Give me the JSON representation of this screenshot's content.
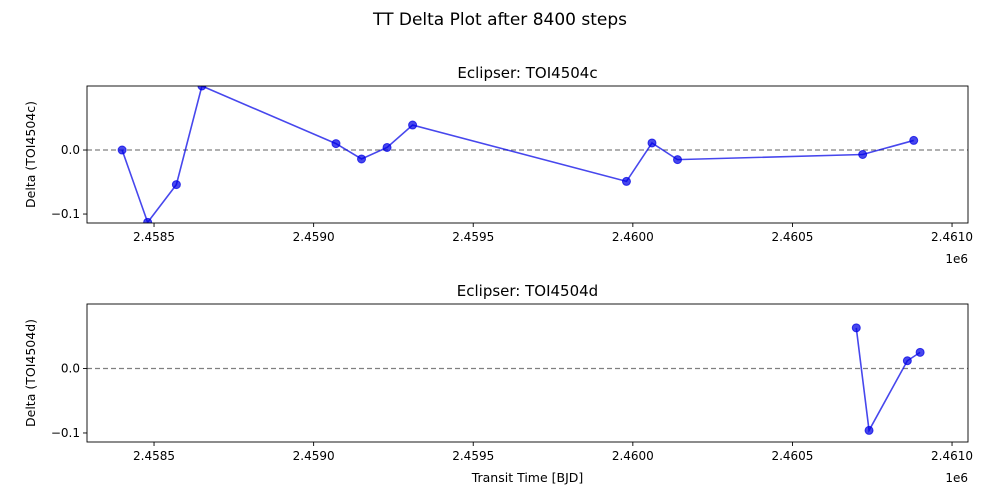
{
  "figure": {
    "suptitle": "TT Delta Plot after 8400 steps"
  },
  "chart_data": [
    {
      "type": "line",
      "title": "Eclipser: TOI4504c",
      "xlabel": "",
      "ylabel": "Delta (TOI4504c)",
      "xlim": [
        2.45829,
        2.46105
      ],
      "ylim": [
        -0.114,
        0.1
      ],
      "x_offset_label": "1e6",
      "x_ticks": [
        2.4585,
        2.459,
        2.4595,
        2.46,
        2.4605,
        2.461
      ],
      "x_tick_labels": [
        "2.4585",
        "2.4590",
        "2.4595",
        "2.4600",
        "2.4605",
        "2.4610"
      ],
      "y_ticks": [
        -0.1,
        0.0
      ],
      "y_tick_labels": [
        "−0.1",
        "0.0"
      ],
      "reference_line": {
        "y": 0.0,
        "style": "dashed",
        "color": "#808080"
      },
      "color": "#0000e6",
      "series": [
        {
          "x": [
            2.4584,
            2.45848,
            2.45857,
            2.45865,
            2.45907,
            2.45915,
            2.45923,
            2.45931,
            2.45998,
            2.46006,
            2.46014,
            2.46072,
            2.46088
          ],
          "y": [
            0.0,
            -0.113,
            -0.054,
            0.1,
            0.01,
            -0.014,
            0.004,
            0.039,
            -0.049,
            0.011,
            -0.015,
            -0.007,
            0.015
          ]
        }
      ]
    },
    {
      "type": "line",
      "title": "Eclipser: TOI4504d",
      "xlabel": "Transit Time [BJD]",
      "ylabel": "Delta (TOI4504d)",
      "xlim": [
        2.45829,
        2.46105
      ],
      "ylim": [
        -0.114,
        0.1
      ],
      "x_offset_label": "1e6",
      "x_ticks": [
        2.4585,
        2.459,
        2.4595,
        2.46,
        2.4605,
        2.461
      ],
      "x_tick_labels": [
        "2.4585",
        "2.4590",
        "2.4595",
        "2.4600",
        "2.4605",
        "2.4610"
      ],
      "y_ticks": [
        -0.1,
        0.0
      ],
      "y_tick_labels": [
        "−0.1",
        "0.0"
      ],
      "reference_line": {
        "y": 0.0,
        "style": "dashed",
        "color": "#808080"
      },
      "color": "#0000e6",
      "series": [
        {
          "x": [
            2.4607,
            2.46074,
            2.46086,
            2.4609
          ],
          "y": [
            0.063,
            -0.096,
            0.012,
            0.025
          ]
        }
      ]
    }
  ]
}
